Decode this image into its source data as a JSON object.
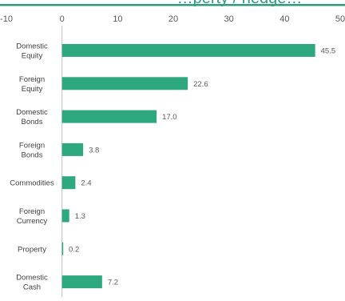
{
  "colors": {
    "bar": "#2ea87f",
    "top_rule": "#2e9c7e",
    "axis": "#bfbfbf",
    "text": "#595959"
  },
  "chart_data": {
    "type": "bar",
    "orientation": "horizontal",
    "title": "…perty / hedge…",
    "categories": [
      [
        "Domestic",
        "Equity"
      ],
      [
        "Foreign",
        "Equity"
      ],
      [
        "Domestic",
        "Bonds"
      ],
      [
        "Foreign",
        "Bonds"
      ],
      [
        "Commodities"
      ],
      [
        "Foreign",
        "Currency"
      ],
      [
        "Property"
      ],
      [
        "Domestic",
        "Cash"
      ]
    ],
    "values": [
      45.5,
      22.6,
      17.0,
      3.8,
      2.4,
      1.3,
      0.2,
      7.2
    ],
    "value_labels": [
      "45.5",
      "22.6",
      "17.0",
      "3.8",
      "2.4",
      "1.3",
      "0.2",
      "7.2"
    ],
    "xlim": [
      -10,
      50
    ],
    "xticks": [
      -10,
      0,
      10,
      20,
      30,
      40,
      50
    ],
    "xtick_labels": [
      "-10",
      "0",
      "10",
      "20",
      "30",
      "40",
      "50"
    ],
    "axis_position": "top",
    "grid": false,
    "legend": "none"
  }
}
